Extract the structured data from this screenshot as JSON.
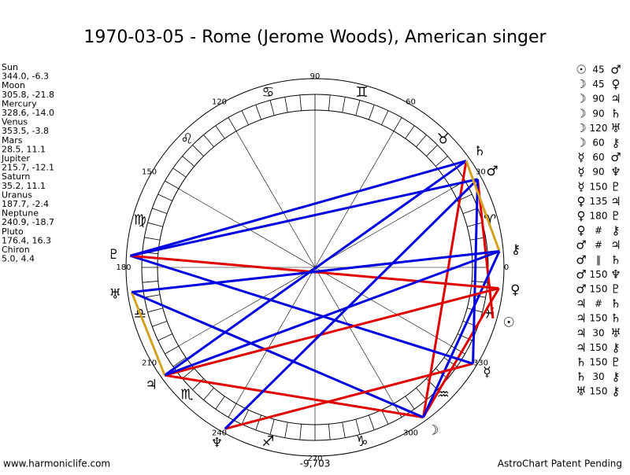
{
  "title": "1970-03-05 - Rome (Jerome Woods), American singer",
  "planets": [
    {
      "name": "Sun",
      "glyph": "☉",
      "position": "344.0, -6.3"
    },
    {
      "name": "Moon",
      "glyph": "☽",
      "position": "305.8, -21.8"
    },
    {
      "name": "Mercury",
      "glyph": "☿",
      "position": "328.6, -14.0"
    },
    {
      "name": "Venus",
      "glyph": "♀",
      "position": "353.5, -3.8"
    },
    {
      "name": "Mars",
      "glyph": "♂",
      "position": "28.5, 11.1"
    },
    {
      "name": "Jupiter",
      "glyph": "♃",
      "position": "215.7, -12.1"
    },
    {
      "name": "Saturn",
      "glyph": "♄",
      "position": "35.2, 11.1"
    },
    {
      "name": "Uranus",
      "glyph": "♅",
      "position": "187.7, -2.4"
    },
    {
      "name": "Neptune",
      "glyph": "♆",
      "position": "240.9, -18.7"
    },
    {
      "name": "Pluto",
      "glyph": "♇",
      "position": "176.4, 16.3"
    },
    {
      "name": "Chiron",
      "glyph": "⚷",
      "position": "5.0, 4.4"
    }
  ],
  "signs": [
    "♈",
    "♉",
    "♊",
    "♋",
    "♌",
    "♍",
    "♎",
    "♏",
    "♐",
    "♑",
    "♒",
    "♓"
  ],
  "degree_ticks": [
    0,
    30,
    60,
    90,
    120,
    150,
    180,
    210,
    240,
    270,
    300,
    330
  ],
  "aspects": [
    {
      "from": 0,
      "aspect": "45",
      "to": 4,
      "color": "#e00000"
    },
    {
      "from": 1,
      "aspect": "45",
      "to": 3,
      "color": "#e00000"
    },
    {
      "from": 1,
      "aspect": "90",
      "to": 5,
      "color": "#e00000"
    },
    {
      "from": 1,
      "aspect": "90",
      "to": 6,
      "color": "#e00000"
    },
    {
      "from": 1,
      "aspect": "120",
      "to": 7,
      "color": "#0000e0"
    },
    {
      "from": 1,
      "aspect": "60",
      "to": 10,
      "color": "#0000e0"
    },
    {
      "from": 2,
      "aspect": "60",
      "to": 4,
      "color": "#0000e0"
    },
    {
      "from": 2,
      "aspect": "90",
      "to": 8,
      "color": "#e00000"
    },
    {
      "from": 2,
      "aspect": "150",
      "to": 9,
      "color": "#0000e0"
    },
    {
      "from": 3,
      "aspect": "135",
      "to": 5,
      "color": "#e00000"
    },
    {
      "from": 3,
      "aspect": "180",
      "to": 9,
      "color": "#e00000"
    },
    {
      "from": 3,
      "aspect": "#",
      "to": 10
    },
    {
      "from": 4,
      "aspect": "#",
      "to": 5
    },
    {
      "from": 4,
      "aspect": "‖",
      "to": 6
    },
    {
      "from": 4,
      "aspect": "150",
      "to": 8,
      "color": "#0000e0"
    },
    {
      "from": 4,
      "aspect": "150",
      "to": 9,
      "color": "#0000e0"
    },
    {
      "from": 5,
      "aspect": "#",
      "to": 6
    },
    {
      "from": 5,
      "aspect": "150",
      "to": 6,
      "color": "#0000e0"
    },
    {
      "from": 5,
      "aspect": "30",
      "to": 7,
      "color": "#d4a020"
    },
    {
      "from": 5,
      "aspect": "150",
      "to": 10,
      "color": "#0000e0"
    },
    {
      "from": 6,
      "aspect": "150",
      "to": 9,
      "color": "#0000e0"
    },
    {
      "from": 6,
      "aspect": "30",
      "to": 10,
      "color": "#d4a020"
    },
    {
      "from": 7,
      "aspect": "150",
      "to": 10,
      "color": "#0000e0"
    }
  ],
  "center_value": "-9,703",
  "footer": {
    "left": "www.harmoniclife.com",
    "right": "AstroChart Patent Pending"
  }
}
